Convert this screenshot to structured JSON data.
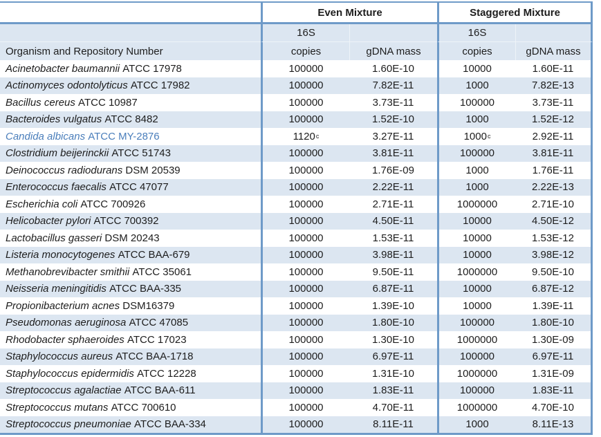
{
  "colors": {
    "row_band": "#dce6f1",
    "table_border": "#6e9ac8",
    "highlight_text": "#4a7ebb"
  },
  "table": {
    "group_headers": [
      "Even Mixture",
      "Staggered Mixture"
    ],
    "sub_headers": {
      "organism": "Organism and Repository Number",
      "copies_16s": "16S",
      "copies": "copies",
      "gdna_mass": "gDNA mass"
    },
    "rows": [
      {
        "organism": "Acinetobacter baumannii",
        "strain": "ATCC 17978",
        "even_copies": "100000",
        "even_copies_sup": "",
        "even_gdna_mass": "1.60E-10",
        "stag_copies": "10000",
        "stag_copies_sup": "",
        "stag_gdna_mass": "1.60E-11",
        "highlighted": false
      },
      {
        "organism": "Actinomyces odontolyticus",
        "strain": "ATCC 17982",
        "even_copies": "100000",
        "even_copies_sup": "",
        "even_gdna_mass": "7.82E-11",
        "stag_copies": "1000",
        "stag_copies_sup": "",
        "stag_gdna_mass": "7.82E-13",
        "highlighted": false
      },
      {
        "organism": "Bacillus cereus",
        "strain": "ATCC 10987",
        "even_copies": "100000",
        "even_copies_sup": "",
        "even_gdna_mass": "3.73E-11",
        "stag_copies": "100000",
        "stag_copies_sup": "",
        "stag_gdna_mass": "3.73E-11",
        "highlighted": false
      },
      {
        "organism": "Bacteroides vulgatus",
        "strain": "ATCC 8482",
        "even_copies": "100000",
        "even_copies_sup": "",
        "even_gdna_mass": "1.52E-10",
        "stag_copies": "1000",
        "stag_copies_sup": "",
        "stag_gdna_mass": "1.52E-12",
        "highlighted": false
      },
      {
        "organism": "Candida albicans",
        "strain": "ATCC MY-2876",
        "even_copies": "1120",
        "even_copies_sup": "c",
        "even_gdna_mass": "3.27E-11",
        "stag_copies": "1000",
        "stag_copies_sup": "c",
        "stag_gdna_mass": "2.92E-11",
        "highlighted": true
      },
      {
        "organism": "Clostridium beijerinckii",
        "strain": "ATCC 51743",
        "even_copies": "100000",
        "even_copies_sup": "",
        "even_gdna_mass": "3.81E-11",
        "stag_copies": "100000",
        "stag_copies_sup": "",
        "stag_gdna_mass": "3.81E-11",
        "highlighted": false
      },
      {
        "organism": "Deinococcus radiodurans",
        "strain": "DSM 20539",
        "even_copies": "100000",
        "even_copies_sup": "",
        "even_gdna_mass": "1.76E-09",
        "stag_copies": "1000",
        "stag_copies_sup": "",
        "stag_gdna_mass": "1.76E-11",
        "highlighted": false
      },
      {
        "organism": "Enterococcus faecalis",
        "strain": "ATCC 47077",
        "even_copies": "100000",
        "even_copies_sup": "",
        "even_gdna_mass": "2.22E-11",
        "stag_copies": "1000",
        "stag_copies_sup": "",
        "stag_gdna_mass": "2.22E-13",
        "highlighted": false
      },
      {
        "organism": "Escherichia coli",
        "strain": "ATCC 700926",
        "even_copies": "100000",
        "even_copies_sup": "",
        "even_gdna_mass": "2.71E-11",
        "stag_copies": "1000000",
        "stag_copies_sup": "",
        "stag_gdna_mass": "2.71E-10",
        "highlighted": false
      },
      {
        "organism": "Helicobacter pylori",
        "strain": "ATCC 700392",
        "even_copies": "100000",
        "even_copies_sup": "",
        "even_gdna_mass": "4.50E-11",
        "stag_copies": "10000",
        "stag_copies_sup": "",
        "stag_gdna_mass": "4.50E-12",
        "highlighted": false
      },
      {
        "organism": "Lactobacillus gasseri",
        "strain": "DSM 20243",
        "even_copies": "100000",
        "even_copies_sup": "",
        "even_gdna_mass": "1.53E-11",
        "stag_copies": "10000",
        "stag_copies_sup": "",
        "stag_gdna_mass": "1.53E-12",
        "highlighted": false
      },
      {
        "organism": "Listeria monocytogenes",
        "strain": "ATCC BAA-679",
        "even_copies": "100000",
        "even_copies_sup": "",
        "even_gdna_mass": "3.98E-11",
        "stag_copies": "10000",
        "stag_copies_sup": "",
        "stag_gdna_mass": "3.98E-12",
        "highlighted": false
      },
      {
        "organism": "Methanobrevibacter smithii",
        "strain": "ATCC 35061",
        "even_copies": "100000",
        "even_copies_sup": "",
        "even_gdna_mass": "9.50E-11",
        "stag_copies": "1000000",
        "stag_copies_sup": "",
        "stag_gdna_mass": "9.50E-10",
        "highlighted": false
      },
      {
        "organism": "Neisseria meningitidis",
        "strain": "ATCC BAA-335",
        "even_copies": "100000",
        "even_copies_sup": "",
        "even_gdna_mass": "6.87E-11",
        "stag_copies": "10000",
        "stag_copies_sup": "",
        "stag_gdna_mass": "6.87E-12",
        "highlighted": false
      },
      {
        "organism": "Propionibacterium acnes",
        "strain": "DSM16379",
        "even_copies": "100000",
        "even_copies_sup": "",
        "even_gdna_mass": "1.39E-10",
        "stag_copies": "10000",
        "stag_copies_sup": "",
        "stag_gdna_mass": "1.39E-11",
        "highlighted": false
      },
      {
        "organism": "Pseudomonas aeruginosa",
        "strain": "ATCC 47085",
        "even_copies": "100000",
        "even_copies_sup": "",
        "even_gdna_mass": "1.80E-10",
        "stag_copies": "100000",
        "stag_copies_sup": "",
        "stag_gdna_mass": "1.80E-10",
        "highlighted": false
      },
      {
        "organism": "Rhodobacter sphaeroides",
        "strain": "ATCC 17023",
        "even_copies": "100000",
        "even_copies_sup": "",
        "even_gdna_mass": "1.30E-10",
        "stag_copies": "1000000",
        "stag_copies_sup": "",
        "stag_gdna_mass": "1.30E-09",
        "highlighted": false
      },
      {
        "organism": "Staphylococcus aureus",
        "strain": "ATCC BAA-1718",
        "even_copies": "100000",
        "even_copies_sup": "",
        "even_gdna_mass": "6.97E-11",
        "stag_copies": "100000",
        "stag_copies_sup": "",
        "stag_gdna_mass": "6.97E-11",
        "highlighted": false
      },
      {
        "organism": "Staphylococcus epidermidis",
        "strain": "ATCC 12228",
        "even_copies": "100000",
        "even_copies_sup": "",
        "even_gdna_mass": "1.31E-10",
        "stag_copies": "1000000",
        "stag_copies_sup": "",
        "stag_gdna_mass": "1.31E-09",
        "highlighted": false
      },
      {
        "organism": "Streptococcus agalactiae",
        "strain": "ATCC BAA-611",
        "even_copies": "100000",
        "even_copies_sup": "",
        "even_gdna_mass": "1.83E-11",
        "stag_copies": "100000",
        "stag_copies_sup": "",
        "stag_gdna_mass": "1.83E-11",
        "highlighted": false
      },
      {
        "organism": "Streptococcus mutans",
        "strain": "ATCC 700610",
        "even_copies": "100000",
        "even_copies_sup": "",
        "even_gdna_mass": "4.70E-11",
        "stag_copies": "1000000",
        "stag_copies_sup": "",
        "stag_gdna_mass": "4.70E-10",
        "highlighted": false
      },
      {
        "organism": "Streptococcus pneumoniae",
        "strain": "ATCC BAA-334",
        "even_copies": "100000",
        "even_copies_sup": "",
        "even_gdna_mass": "8.11E-11",
        "stag_copies": "1000",
        "stag_copies_sup": "",
        "stag_gdna_mass": "8.11E-13",
        "highlighted": false
      }
    ]
  }
}
